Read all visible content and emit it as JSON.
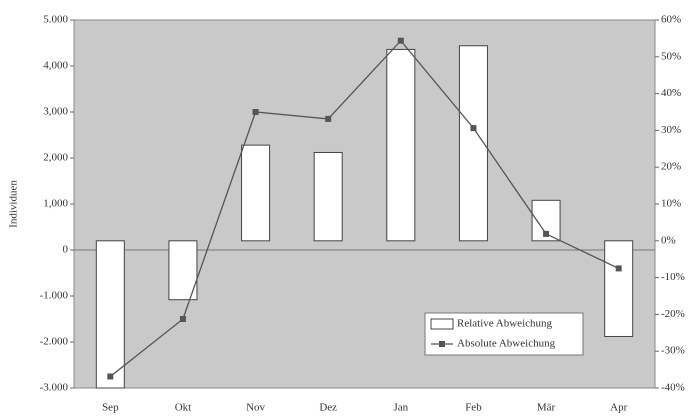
{
  "chart_data": {
    "type": "bar-line",
    "y_label": "Individuen",
    "categories": [
      "Sep",
      "Okt",
      "Nov",
      "Dez",
      "Jan",
      "Feb",
      "Mär",
      "Apr"
    ],
    "series": [
      {
        "name": "Relative Abweichung",
        "type": "bar",
        "axis": "y2",
        "color": "#ffffff",
        "values": [
          -40,
          -16,
          26,
          24,
          52,
          53,
          11,
          -26
        ]
      },
      {
        "name": "Absolute Abweichung",
        "type": "line",
        "axis": "y",
        "color": "#555555",
        "values": [
          -2750,
          -1500,
          3000,
          2850,
          4550,
          2650,
          350,
          -400
        ]
      }
    ],
    "ylim": [
      -3000,
      5000
    ],
    "yticks": [
      {
        "value": 5000,
        "label": "5.000"
      },
      {
        "value": 4000,
        "label": "4,000"
      },
      {
        "value": 3000,
        "label": "3,000"
      },
      {
        "value": 2000,
        "label": "2,000"
      },
      {
        "value": 1000,
        "label": "1,000"
      },
      0,
      {
        "value": -1000,
        "label": "-1.000"
      },
      {
        "value": -2000,
        "label": "-2.000"
      },
      {
        "value": -3000,
        "label": "-3.000"
      }
    ],
    "y2lim": [
      -40,
      60
    ],
    "y2ticks": [
      {
        "value": 60,
        "label": "60%"
      },
      {
        "value": 50,
        "label": "50%"
      },
      {
        "value": 40,
        "label": "40%"
      },
      {
        "value": 30,
        "label": "30%"
      },
      {
        "value": 20,
        "label": "20%"
      },
      {
        "value": 10,
        "label": "10%"
      },
      {
        "value": 0,
        "label": "0%"
      },
      {
        "value": -10,
        "label": "-10%"
      },
      {
        "value": -20,
        "label": "-20%"
      },
      {
        "value": -30,
        "label": "-30%"
      },
      {
        "value": -40,
        "label": "-40%"
      }
    ],
    "legend": "lower right"
  }
}
